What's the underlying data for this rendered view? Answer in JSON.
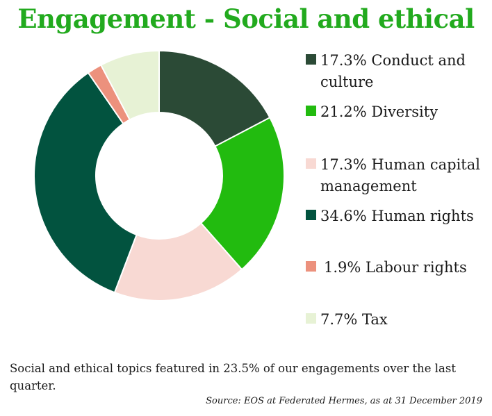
{
  "chart_data": {
    "type": "pie",
    "variant": "donut",
    "title": "Engagement - Social and ethical",
    "categories": [
      "Conduct and culture",
      "Diversity",
      "Human capital management",
      "Human rights",
      "Labour rights",
      "Tax"
    ],
    "values": [
      17.3,
      21.2,
      17.3,
      34.6,
      1.9,
      7.7
    ],
    "unit": "%",
    "colors": [
      "#2b4a36",
      "#22bb0f",
      "#f8d9d3",
      "#02533f",
      "#ec917d",
      "#e7f2d5"
    ],
    "legend_labels": [
      "17.3% Conduct and culture",
      "21.2% Diversity",
      "17.3% Human capital management",
      "34.6% Human rights",
      " 1.9% Labour rights",
      "7.7% Tax"
    ],
    "legend_position": "right",
    "start_angle": "12 o'clock",
    "direction": "clockwise"
  },
  "footnote": "Social and ethical topics featured in 23.5% of our engagements over the last quarter.",
  "source": "Source: EOS at Federated Hermes, as at 31 December 2019",
  "colors": {
    "title": "#22aa1e",
    "text": "#1a1a1a",
    "background": "#ffffff"
  }
}
